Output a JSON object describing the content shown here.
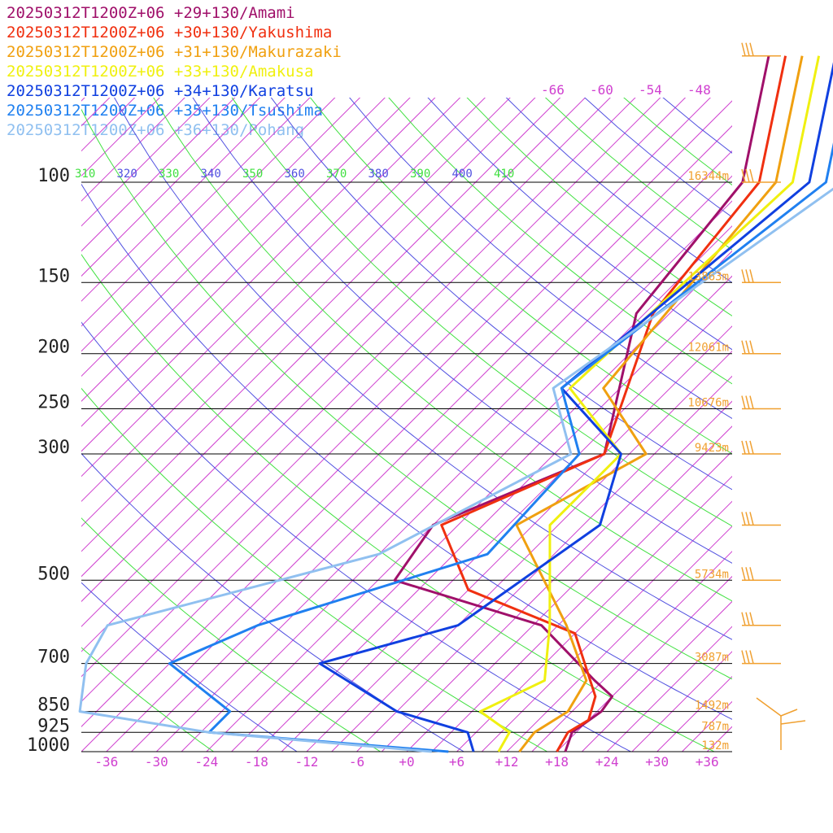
{
  "chart_data": {
    "type": "line",
    "chart_kind": "skew-T log-P sounding",
    "title": "",
    "xlabel": "",
    "ylabel": "",
    "x_ticks": [
      "-36",
      "-30",
      "-24",
      "-18",
      "-12",
      "-6",
      "+0",
      "+6",
      "+12",
      "+18",
      "+24",
      "+30",
      "+36"
    ],
    "x_tick_values": [
      -36,
      -30,
      -24,
      -18,
      -12,
      -6,
      0,
      6,
      12,
      18,
      24,
      30,
      36
    ],
    "pressure_levels": [
      {
        "label": "100",
        "value": 100,
        "height": "16344m"
      },
      {
        "label": "150",
        "value": 150,
        "height": "13863m"
      },
      {
        "label": "200",
        "value": 200,
        "height": "12061m"
      },
      {
        "label": "250",
        "value": 250,
        "height": "10676m"
      },
      {
        "label": "300",
        "value": 300,
        "height": "9423m"
      },
      {
        "label": "500",
        "value": 500,
        "height": "5734m"
      },
      {
        "label": "700",
        "value": 700,
        "height": "3087m"
      },
      {
        "label": "850",
        "value": 850,
        "height": "1492m"
      },
      {
        "label": "925",
        "value": 925,
        "height": "787m"
      },
      {
        "label": "1000",
        "value": 1000,
        "height": "132m"
      }
    ],
    "ylim": [
      1000,
      100
    ],
    "ylog": true,
    "upper_isotherm_labels": [
      "-66",
      "-60",
      "-54",
      "-48"
    ],
    "theta_labels": [
      {
        "label": "310",
        "color": "#40e040"
      },
      {
        "label": "320",
        "color": "#5050e0"
      },
      {
        "label": "330",
        "color": "#40e040"
      },
      {
        "label": "340",
        "color": "#5050e0"
      },
      {
        "label": "350",
        "color": "#40e040"
      },
      {
        "label": "360",
        "color": "#5050e0"
      },
      {
        "label": "370",
        "color": "#40e040"
      },
      {
        "label": "380",
        "color": "#5050e0"
      },
      {
        "label": "390",
        "color": "#40e040"
      },
      {
        "label": "400",
        "color": "#5050e0"
      },
      {
        "label": "410",
        "color": "#40e040"
      }
    ],
    "colors": {
      "isotherm": "#d040d0",
      "dry_adiabat_a": "#40e040",
      "dry_adiabat_b": "#5050e0",
      "isobar": "#000000",
      "wind": "#f0a030",
      "height_label": "#f0a030"
    },
    "series": [
      {
        "name": "20250312T1200Z+06 +29+130/Amami",
        "color": "#a0106a",
        "points": [
          [
            19,
            1000
          ],
          [
            17.5,
            925
          ],
          [
            18.5,
            850
          ],
          [
            18,
            800
          ],
          [
            14,
            750
          ],
          [
            1,
            600
          ],
          [
            -22,
            500
          ],
          [
            -24,
            400
          ],
          [
            -12,
            300
          ],
          [
            -25,
            170
          ],
          [
            -28,
            100
          ],
          [
            -40,
            60
          ]
        ]
      },
      {
        "name": "20250312T1200Z+06 +30+130/Yakushima",
        "color": "#f03010",
        "points": [
          [
            18,
            1000
          ],
          [
            17,
            925
          ],
          [
            18,
            880
          ],
          [
            16,
            800
          ],
          [
            6,
            620
          ],
          [
            -12,
            520
          ],
          [
            -23,
            400
          ],
          [
            -12,
            300
          ],
          [
            -23,
            170
          ],
          [
            -26,
            100
          ],
          [
            -38,
            60
          ]
        ]
      },
      {
        "name": "20250312T1200Z+06 +31+130/Makurazaki",
        "color": "#f0a010",
        "points": [
          [
            13.5,
            1000
          ],
          [
            13,
            925
          ],
          [
            14.5,
            850
          ],
          [
            13,
            750
          ],
          [
            4,
            600
          ],
          [
            -14,
            400
          ],
          [
            -7,
            300
          ],
          [
            -20,
            230
          ],
          [
            -24,
            100
          ],
          [
            -36,
            60
          ]
        ]
      },
      {
        "name": "20250312T1200Z+06 +33+130/Amakusa",
        "color": "#f0f010",
        "points": [
          [
            11,
            1000
          ],
          [
            10,
            925
          ],
          [
            4,
            850
          ],
          [
            8,
            750
          ],
          [
            2,
            600
          ],
          [
            -10,
            400
          ],
          [
            -10,
            300
          ],
          [
            -24,
            230
          ],
          [
            -22,
            100
          ],
          [
            -34,
            60
          ]
        ]
      },
      {
        "name": "20250312T1200Z+06 +34+130/Karatsu",
        "color": "#1040e0",
        "points": [
          [
            8,
            1000
          ],
          [
            5,
            925
          ],
          [
            -6,
            850
          ],
          [
            -21,
            700
          ],
          [
            -9,
            600
          ],
          [
            -4,
            400
          ],
          [
            -10,
            300
          ],
          [
            -25,
            230
          ],
          [
            -20,
            100
          ],
          [
            -32,
            60
          ]
        ]
      },
      {
        "name": "20250312T1200Z+06 +35+130/Tsushima",
        "color": "#2080f0",
        "points": [
          [
            5,
            1000
          ],
          [
            -26,
            925
          ],
          [
            -26,
            850
          ],
          [
            -39,
            700
          ],
          [
            -33,
            600
          ],
          [
            -14,
            450
          ],
          [
            -15,
            300
          ],
          [
            -25,
            230
          ],
          [
            -18,
            100
          ],
          [
            -30,
            60
          ]
        ]
      },
      {
        "name": "20250312T1200Z+06 +36+130/Pohang",
        "color": "#90c0f0",
        "points": [
          [
            3,
            1000
          ],
          [
            -26,
            925
          ],
          [
            -44,
            850
          ],
          [
            -49,
            700
          ],
          [
            -51,
            600
          ],
          [
            -27,
            450
          ],
          [
            -16,
            300
          ],
          [
            -26,
            230
          ],
          [
            -16,
            100
          ],
          [
            -28,
            60
          ]
        ]
      }
    ]
  }
}
